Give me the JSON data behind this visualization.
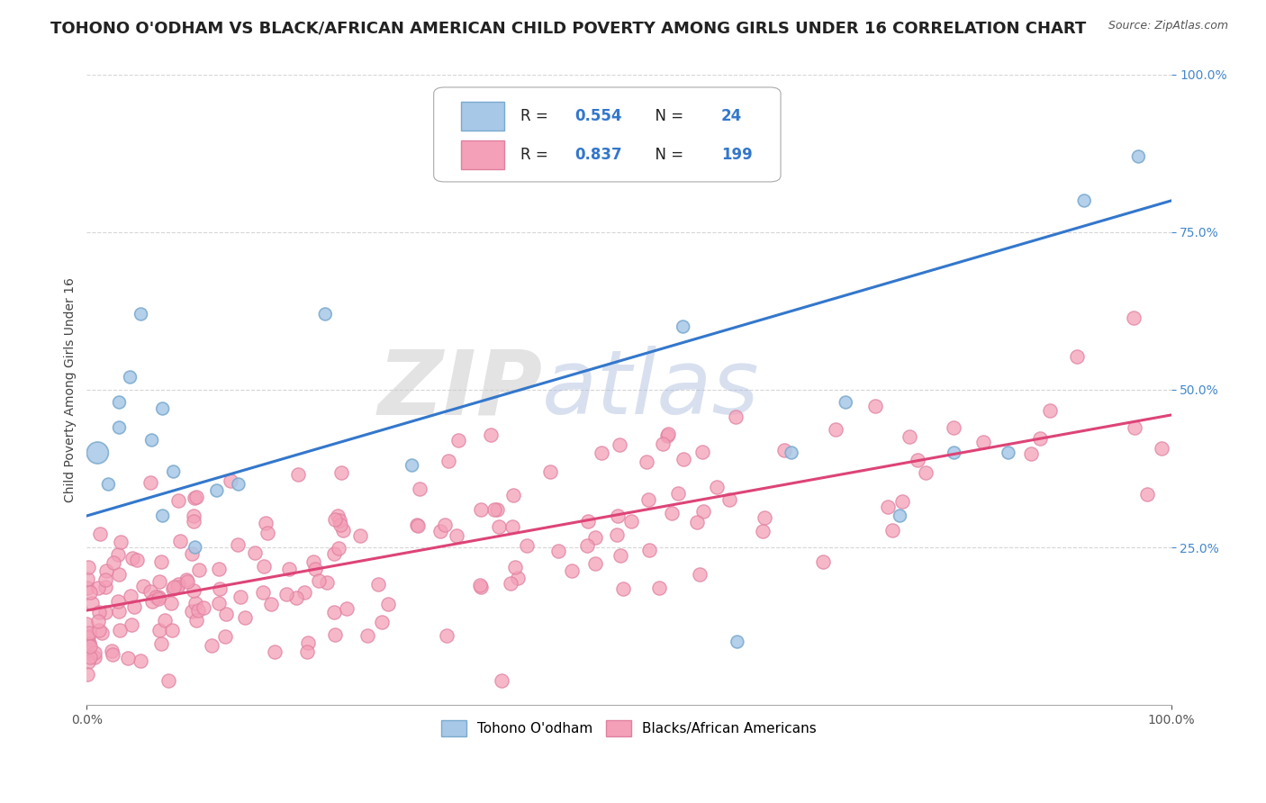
{
  "title": "TOHONO O'ODHAM VS BLACK/AFRICAN AMERICAN CHILD POVERTY AMONG GIRLS UNDER 16 CORRELATION CHART",
  "source": "Source: ZipAtlas.com",
  "ylabel": "Child Poverty Among Girls Under 16",
  "watermark_zip": "ZIP",
  "watermark_atlas": "atlas",
  "blue_R": 0.554,
  "blue_N": 24,
  "pink_R": 0.837,
  "pink_N": 199,
  "blue_dot_color": "#a8c8e8",
  "blue_dot_edge": "#7aaace",
  "pink_dot_color": "#f4a0b8",
  "pink_dot_edge": "#e080a0",
  "blue_line_color": "#3377cc",
  "pink_line_color": "#dd4477",
  "legend_blue_label": "Tohono O'odham",
  "legend_pink_label": "Blacks/African Americans",
  "xlim": [
    0,
    1
  ],
  "ylim": [
    0,
    1
  ],
  "background_color": "#ffffff",
  "grid_color": "#cccccc",
  "title_fontsize": 13,
  "axis_label_fontsize": 10,
  "tick_fontsize": 10,
  "blue_line_y_start": 0.3,
  "blue_line_y_end": 0.8,
  "pink_line_y_start": 0.15,
  "pink_line_y_end": 0.46,
  "blue_scatter_x": [
    0.01,
    0.02,
    0.03,
    0.03,
    0.04,
    0.05,
    0.06,
    0.07,
    0.07,
    0.08,
    0.1,
    0.12,
    0.14,
    0.22,
    0.3,
    0.55,
    0.6,
    0.65,
    0.7,
    0.75,
    0.8,
    0.85,
    0.92,
    0.97
  ],
  "blue_scatter_y": [
    0.4,
    0.35,
    0.44,
    0.48,
    0.52,
    0.62,
    0.42,
    0.47,
    0.3,
    0.37,
    0.25,
    0.34,
    0.35,
    0.62,
    0.38,
    0.6,
    0.1,
    0.4,
    0.48,
    0.3,
    0.4,
    0.4,
    0.8,
    0.87
  ],
  "blue_scatter_sizes": [
    300,
    100,
    100,
    100,
    100,
    100,
    100,
    100,
    100,
    100,
    100,
    100,
    100,
    100,
    100,
    100,
    100,
    100,
    100,
    100,
    100,
    100,
    100,
    100
  ]
}
